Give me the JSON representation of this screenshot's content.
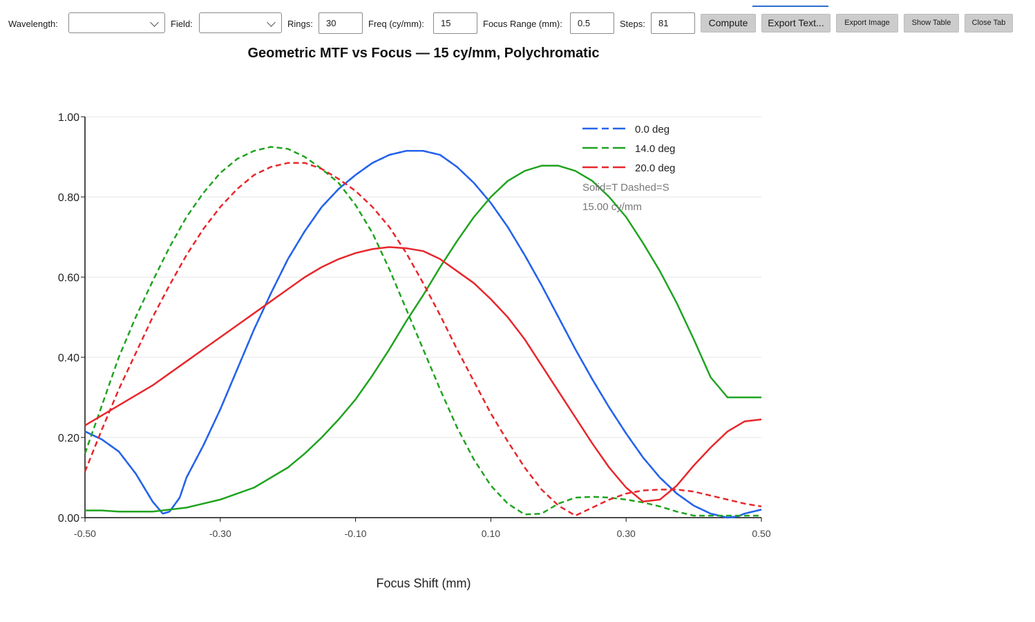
{
  "toolbar": {
    "wavelength_label": "Wavelength:",
    "wavelength_value": "",
    "field_label": "Field:",
    "field_value": "",
    "rings_label": "Rings:",
    "rings_value": "30",
    "freq_label": "Freq (cy/mm):",
    "freq_value": "15",
    "focus_range_label": "Focus Range (mm):",
    "focus_range_value": "0.5",
    "steps_label": "Steps:",
    "steps_value": "81",
    "compute_label": "Compute",
    "export_text_label": "Export Text...",
    "export_image_label": "Export Image",
    "show_table_label": "Show Table",
    "close_tab_label": "Close Tab"
  },
  "chart_data": {
    "type": "line",
    "title": "Geometric MTF vs Focus — 15 cy/mm, Polychromatic",
    "xlabel": "Focus Shift (mm)",
    "ylabel": "",
    "xlim": [
      -0.5,
      0.5
    ],
    "ylim": [
      0,
      1.0
    ],
    "xticks": [
      "-0.50",
      "-0.30",
      "-0.10",
      "0.10",
      "0.30",
      "0.50"
    ],
    "yticks": [
      "0.00",
      "0.20",
      "0.40",
      "0.60",
      "0.80",
      "1.00"
    ],
    "grid": "horizontal",
    "legend_position": "top-right",
    "notes": [
      "Solid=T Dashed=S",
      "15.00 cy/mm"
    ],
    "series": [
      {
        "name": "0.0 deg",
        "color": "#2563eb",
        "style": "solid",
        "x": [
          -0.5,
          -0.475,
          -0.45,
          -0.425,
          -0.4,
          -0.385,
          -0.375,
          -0.36,
          -0.35,
          -0.325,
          -0.3,
          -0.275,
          -0.25,
          -0.225,
          -0.2,
          -0.175,
          -0.15,
          -0.125,
          -0.1,
          -0.075,
          -0.05,
          -0.025,
          0.0,
          0.025,
          0.05,
          0.075,
          0.1,
          0.125,
          0.15,
          0.175,
          0.2,
          0.225,
          0.25,
          0.275,
          0.3,
          0.325,
          0.35,
          0.375,
          0.4,
          0.425,
          0.45,
          0.465,
          0.475,
          0.5
        ],
        "y": [
          0.215,
          0.195,
          0.165,
          0.11,
          0.04,
          0.01,
          0.015,
          0.05,
          0.1,
          0.18,
          0.27,
          0.37,
          0.47,
          0.56,
          0.645,
          0.715,
          0.775,
          0.82,
          0.855,
          0.885,
          0.905,
          0.915,
          0.915,
          0.905,
          0.875,
          0.835,
          0.785,
          0.725,
          0.655,
          0.58,
          0.5,
          0.42,
          0.345,
          0.275,
          0.21,
          0.15,
          0.1,
          0.06,
          0.03,
          0.01,
          0.0,
          0.003,
          0.01,
          0.02
        ]
      },
      {
        "name": "0.0 deg",
        "color": "#2563eb",
        "style": "dashed",
        "x": [
          -0.5,
          -0.475,
          -0.45,
          -0.425,
          -0.4,
          -0.385,
          -0.375,
          -0.36,
          -0.35,
          -0.325,
          -0.3,
          -0.275,
          -0.25,
          -0.225,
          -0.2,
          -0.175,
          -0.15,
          -0.125,
          -0.1,
          -0.075,
          -0.05,
          -0.025,
          0.0,
          0.025,
          0.05,
          0.075,
          0.1,
          0.125,
          0.15,
          0.175,
          0.2,
          0.225,
          0.25,
          0.275,
          0.3,
          0.325,
          0.35,
          0.375,
          0.4,
          0.425,
          0.45,
          0.465,
          0.475,
          0.5
        ],
        "y": [
          0.215,
          0.195,
          0.165,
          0.11,
          0.04,
          0.01,
          0.015,
          0.05,
          0.1,
          0.18,
          0.27,
          0.37,
          0.47,
          0.56,
          0.645,
          0.715,
          0.775,
          0.82,
          0.855,
          0.885,
          0.905,
          0.915,
          0.915,
          0.905,
          0.875,
          0.835,
          0.785,
          0.725,
          0.655,
          0.58,
          0.5,
          0.42,
          0.345,
          0.275,
          0.21,
          0.15,
          0.1,
          0.06,
          0.03,
          0.01,
          0.0,
          0.003,
          0.01,
          0.02
        ]
      },
      {
        "name": "14.0 deg",
        "color": "#1fa31f",
        "style": "solid",
        "x": [
          -0.5,
          -0.475,
          -0.45,
          -0.425,
          -0.4,
          -0.375,
          -0.35,
          -0.325,
          -0.3,
          -0.275,
          -0.25,
          -0.225,
          -0.2,
          -0.175,
          -0.15,
          -0.125,
          -0.1,
          -0.075,
          -0.05,
          -0.025,
          0.0,
          0.025,
          0.05,
          0.075,
          0.1,
          0.125,
          0.15,
          0.175,
          0.2,
          0.225,
          0.25,
          0.275,
          0.3,
          0.325,
          0.35,
          0.375,
          0.4,
          0.425,
          0.45,
          0.475,
          0.5
        ],
        "y": [
          0.018,
          0.018,
          0.015,
          0.015,
          0.015,
          0.02,
          0.025,
          0.035,
          0.045,
          0.06,
          0.075,
          0.1,
          0.125,
          0.16,
          0.2,
          0.245,
          0.295,
          0.355,
          0.42,
          0.49,
          0.555,
          0.625,
          0.69,
          0.75,
          0.8,
          0.84,
          0.865,
          0.878,
          0.878,
          0.865,
          0.84,
          0.8,
          0.75,
          0.685,
          0.615,
          0.535,
          0.445,
          0.35,
          0.3,
          0.3,
          0.3
        ]
      },
      {
        "name": "14.0 deg",
        "color": "#1fa31f",
        "style": "dashed",
        "x": [
          -0.5,
          -0.475,
          -0.45,
          -0.425,
          -0.4,
          -0.375,
          -0.35,
          -0.325,
          -0.3,
          -0.275,
          -0.25,
          -0.225,
          -0.2,
          -0.175,
          -0.15,
          -0.125,
          -0.1,
          -0.075,
          -0.05,
          -0.025,
          0.0,
          0.025,
          0.05,
          0.075,
          0.1,
          0.125,
          0.15,
          0.175,
          0.2,
          0.225,
          0.25,
          0.275,
          0.3,
          0.325,
          0.35,
          0.375,
          0.4,
          0.425,
          0.45,
          0.475,
          0.5
        ],
        "y": [
          0.16,
          0.28,
          0.4,
          0.5,
          0.59,
          0.675,
          0.75,
          0.81,
          0.86,
          0.895,
          0.915,
          0.925,
          0.92,
          0.9,
          0.87,
          0.835,
          0.78,
          0.71,
          0.62,
          0.52,
          0.42,
          0.32,
          0.225,
          0.145,
          0.08,
          0.035,
          0.008,
          0.01,
          0.035,
          0.05,
          0.052,
          0.05,
          0.045,
          0.038,
          0.028,
          0.015,
          0.005,
          0.005,
          0.005,
          0.005,
          0.005
        ]
      },
      {
        "name": "20.0 deg",
        "color": "#e8262b",
        "style": "solid",
        "x": [
          -0.5,
          -0.475,
          -0.45,
          -0.425,
          -0.4,
          -0.375,
          -0.35,
          -0.325,
          -0.3,
          -0.275,
          -0.25,
          -0.225,
          -0.2,
          -0.175,
          -0.15,
          -0.125,
          -0.1,
          -0.075,
          -0.05,
          -0.025,
          0.0,
          0.025,
          0.05,
          0.075,
          0.1,
          0.125,
          0.15,
          0.175,
          0.2,
          0.225,
          0.25,
          0.275,
          0.3,
          0.325,
          0.35,
          0.375,
          0.4,
          0.425,
          0.45,
          0.475,
          0.5
        ],
        "y": [
          0.23,
          0.255,
          0.28,
          0.305,
          0.33,
          0.36,
          0.39,
          0.42,
          0.45,
          0.48,
          0.51,
          0.54,
          0.57,
          0.6,
          0.625,
          0.645,
          0.66,
          0.67,
          0.675,
          0.672,
          0.665,
          0.645,
          0.615,
          0.585,
          0.545,
          0.5,
          0.445,
          0.38,
          0.315,
          0.25,
          0.185,
          0.125,
          0.075,
          0.04,
          0.045,
          0.08,
          0.13,
          0.175,
          0.215,
          0.24,
          0.245
        ]
      },
      {
        "name": "20.0 deg",
        "color": "#e8262b",
        "style": "dashed",
        "x": [
          -0.5,
          -0.475,
          -0.45,
          -0.425,
          -0.4,
          -0.375,
          -0.35,
          -0.325,
          -0.3,
          -0.275,
          -0.25,
          -0.225,
          -0.2,
          -0.175,
          -0.15,
          -0.125,
          -0.1,
          -0.075,
          -0.05,
          -0.025,
          0.0,
          0.025,
          0.05,
          0.075,
          0.1,
          0.125,
          0.15,
          0.175,
          0.2,
          0.225,
          0.25,
          0.275,
          0.3,
          0.325,
          0.35,
          0.375,
          0.4,
          0.425,
          0.45,
          0.475,
          0.5
        ],
        "y": [
          0.115,
          0.22,
          0.32,
          0.41,
          0.5,
          0.58,
          0.655,
          0.72,
          0.775,
          0.82,
          0.855,
          0.875,
          0.885,
          0.885,
          0.87,
          0.845,
          0.815,
          0.775,
          0.725,
          0.66,
          0.585,
          0.505,
          0.42,
          0.34,
          0.26,
          0.19,
          0.125,
          0.07,
          0.03,
          0.005,
          0.025,
          0.045,
          0.06,
          0.068,
          0.07,
          0.07,
          0.065,
          0.055,
          0.045,
          0.035,
          0.028
        ]
      }
    ]
  }
}
